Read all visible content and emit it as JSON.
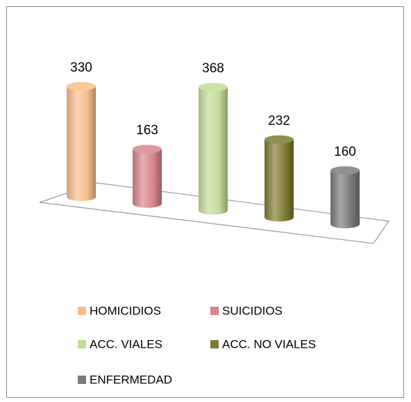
{
  "chart_data": {
    "type": "bar3d",
    "categories": [
      "HOMICIDIOS",
      "SUICIDIOS",
      "ACC. VIALES",
      "ACC. NO VIALES",
      "ENFERMEDAD"
    ],
    "values": [
      330,
      163,
      368,
      232,
      160
    ],
    "colors": [
      "#f8be8c",
      "#d8858b",
      "#c4dc98",
      "#7f7a32",
      "#7b7b7b"
    ],
    "legend": "bottom"
  }
}
